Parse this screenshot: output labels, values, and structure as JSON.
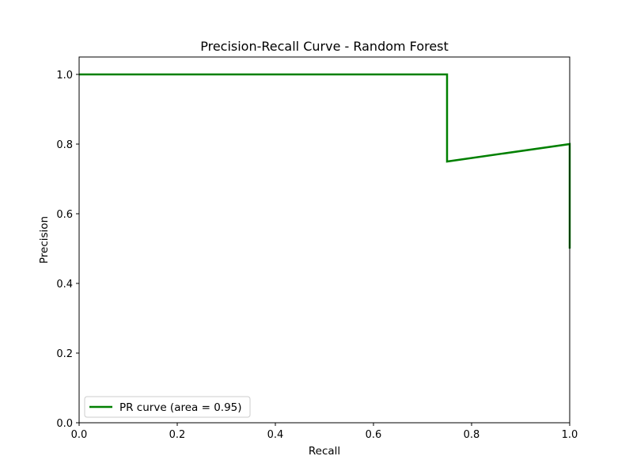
{
  "chart_data": {
    "type": "line",
    "title": "Precision-Recall Curve - Random Forest",
    "xlabel": "Recall",
    "ylabel": "Precision",
    "xlim": [
      0.0,
      1.0
    ],
    "ylim": [
      0.0,
      1.05
    ],
    "xticks": [
      0.0,
      0.2,
      0.4,
      0.6,
      0.8,
      1.0
    ],
    "yticks": [
      0.0,
      0.2,
      0.4,
      0.6,
      0.8,
      1.0
    ],
    "xtick_labels": [
      "0.0",
      "0.2",
      "0.4",
      "0.6",
      "0.8",
      "1.0"
    ],
    "ytick_labels": [
      "0.0",
      "0.2",
      "0.4",
      "0.6",
      "0.8",
      "1.0"
    ],
    "grid": false,
    "legend": {
      "location": "lower-left",
      "entries": [
        "PR curve (area = 0.95)"
      ]
    },
    "series": [
      {
        "name": "PR curve (area = 0.95)",
        "color": "#008000",
        "x": [
          0.0,
          0.75,
          0.75,
          1.0,
          1.0
        ],
        "y": [
          1.0,
          1.0,
          0.75,
          0.8,
          0.5
        ]
      }
    ]
  }
}
